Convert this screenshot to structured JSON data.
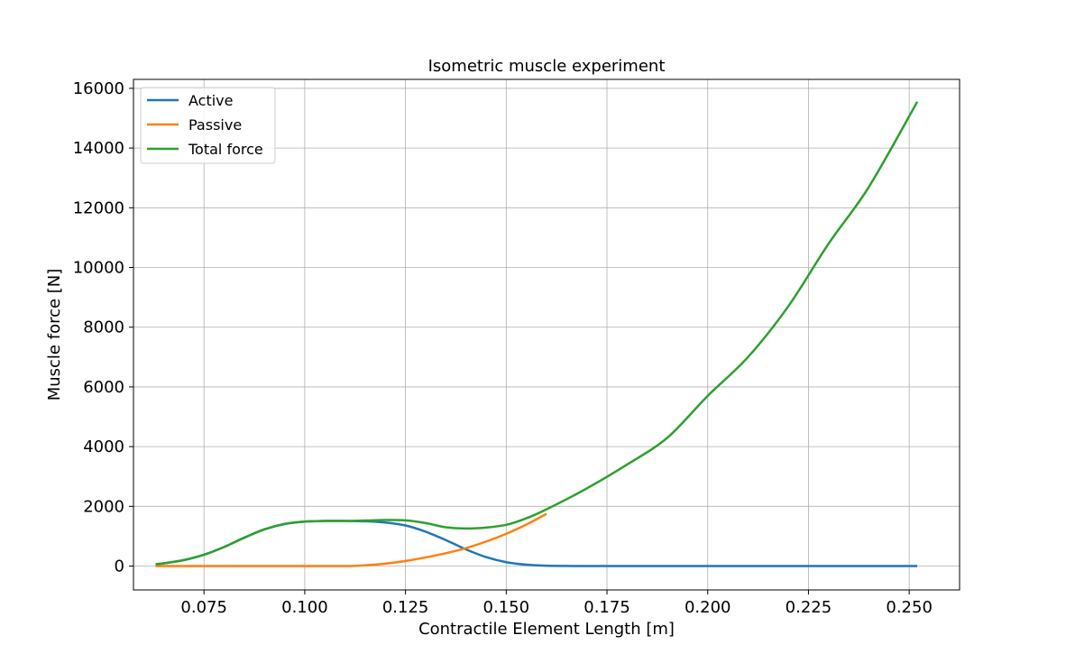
{
  "chart_data": {
    "type": "line",
    "title": "Isometric muscle experiment",
    "xlabel": "Contractile Element Length [m]",
    "ylabel": "Muscle force [N]",
    "xlim": [
      0.0575,
      0.2625
    ],
    "ylim": [
      -800,
      16300
    ],
    "xticks": [
      "0.075",
      "0.100",
      "0.125",
      "0.150",
      "0.175",
      "0.200",
      "0.225",
      "0.250"
    ],
    "yticks": [
      "0",
      "2000",
      "4000",
      "6000",
      "8000",
      "10000",
      "12000",
      "14000",
      "16000"
    ],
    "grid": true,
    "legend_position": "upper left",
    "series": [
      {
        "name": "Active",
        "color": "#1f77b4",
        "x": [
          0.063,
          0.065,
          0.07,
          0.075,
          0.08,
          0.085,
          0.09,
          0.095,
          0.1,
          0.105,
          0.11,
          0.115,
          0.12,
          0.125,
          0.13,
          0.135,
          0.14,
          0.145,
          0.15,
          0.155,
          0.16,
          0.165,
          0.17,
          0.18,
          0.2,
          0.22,
          0.24,
          0.252
        ],
        "y": [
          60,
          90,
          200,
          380,
          640,
          950,
          1230,
          1410,
          1490,
          1510,
          1510,
          1500,
          1460,
          1360,
          1150,
          870,
          560,
          300,
          130,
          45,
          12,
          3,
          1,
          0,
          0,
          0,
          0,
          0
        ]
      },
      {
        "name": "Passive",
        "color": "#ff7f0e",
        "x": [
          0.063,
          0.07,
          0.08,
          0.09,
          0.1,
          0.105,
          0.11,
          0.112,
          0.115,
          0.12,
          0.125,
          0.13,
          0.135,
          0.14,
          0.145,
          0.15,
          0.155,
          0.16
        ],
        "y": [
          0,
          0,
          0,
          0,
          0,
          0,
          0,
          5,
          25,
          80,
          170,
          290,
          430,
          600,
          820,
          1080,
          1390,
          1750
        ]
      },
      {
        "name": "Total force",
        "color": "#2ca02c",
        "x": [
          0.063,
          0.065,
          0.07,
          0.075,
          0.08,
          0.085,
          0.09,
          0.095,
          0.1,
          0.105,
          0.11,
          0.115,
          0.12,
          0.125,
          0.13,
          0.135,
          0.14,
          0.145,
          0.15,
          0.155,
          0.16,
          0.17,
          0.18,
          0.19,
          0.2,
          0.21,
          0.22,
          0.23,
          0.24,
          0.252
        ],
        "y": [
          60,
          90,
          200,
          380,
          640,
          950,
          1230,
          1410,
          1490,
          1510,
          1510,
          1525,
          1540,
          1530,
          1440,
          1300,
          1260,
          1290,
          1380,
          1600,
          1900,
          2600,
          3400,
          4300,
          5700,
          7000,
          8700,
          10800,
          12700,
          15550
        ]
      }
    ]
  }
}
